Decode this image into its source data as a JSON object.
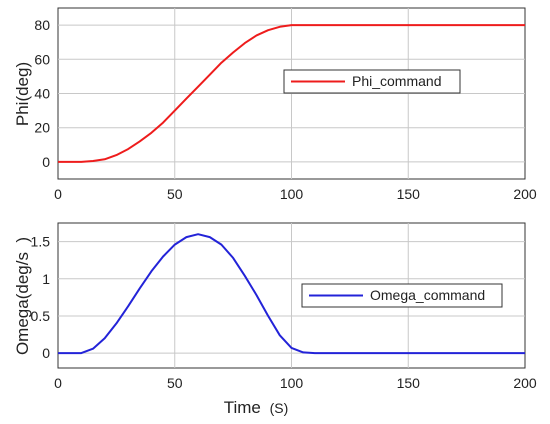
{
  "chart_data": [
    {
      "type": "line",
      "ylabel": "Phi(deg)",
      "xlim": [
        0,
        200
      ],
      "ylim": [
        -10,
        90
      ],
      "xticks": [
        0,
        50,
        100,
        150,
        200
      ],
      "yticks": [
        0,
        20,
        40,
        60,
        80
      ],
      "grid": true,
      "legend_position": "right",
      "series": [
        {
          "name": "Phi_command",
          "color": "#ee1c1c",
          "x": [
            0,
            10,
            15,
            20,
            25,
            30,
            35,
            40,
            45,
            50,
            55,
            60,
            65,
            70,
            75,
            80,
            85,
            90,
            95,
            100,
            105,
            110,
            150,
            200
          ],
          "y": [
            0,
            0,
            0.5,
            1.5,
            4,
            7.5,
            12,
            17,
            23,
            30,
            37,
            44,
            51,
            58,
            64,
            69.5,
            74,
            77,
            79,
            80,
            80,
            80,
            80,
            80
          ]
        }
      ]
    },
    {
      "type": "line",
      "ylabel": "Omega(deg/s  )",
      "xlabel": "Time (S)",
      "xlim": [
        0,
        200
      ],
      "ylim": [
        -0.2,
        1.75
      ],
      "xticks": [
        0,
        50,
        100,
        150,
        200
      ],
      "yticks": [
        0,
        0.5,
        1,
        1.5
      ],
      "grid": true,
      "legend_position": "right",
      "series": [
        {
          "name": "Omega_command",
          "color": "#2323d8",
          "x": [
            0,
            10,
            15,
            20,
            25,
            30,
            35,
            40,
            45,
            50,
            55,
            60,
            65,
            70,
            75,
            80,
            85,
            90,
            95,
            100,
            105,
            110,
            150,
            200
          ],
          "y": [
            0,
            0,
            0.06,
            0.2,
            0.4,
            0.63,
            0.87,
            1.1,
            1.3,
            1.46,
            1.56,
            1.6,
            1.56,
            1.46,
            1.28,
            1.04,
            0.78,
            0.5,
            0.24,
            0.07,
            0.01,
            0,
            0,
            0
          ]
        }
      ]
    }
  ],
  "xlabel_main": "Time",
  "xlabel_unit": "(S)"
}
